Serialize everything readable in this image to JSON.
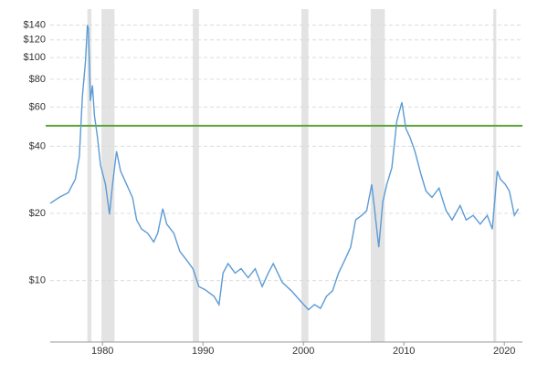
{
  "chart_data": {
    "type": "line",
    "log_scale": true,
    "grid": true,
    "xlim": [
      1974.8,
      2021.8
    ],
    "xticks": [
      1980,
      1990,
      2000,
      2010,
      2020
    ],
    "ylim": [
      5.3,
      165
    ],
    "yticks": [
      {
        "value": 10,
        "label": "$10"
      },
      {
        "value": 20,
        "label": "$20"
      },
      {
        "value": 40,
        "label": "$40"
      },
      {
        "value": 60,
        "label": "$60"
      },
      {
        "value": 80,
        "label": "$80"
      },
      {
        "value": 100,
        "label": "$100"
      },
      {
        "value": 120,
        "label": "$120"
      },
      {
        "value": 140,
        "label": "$140"
      }
    ],
    "recessions": [
      [
        1978.5,
        1978.9
      ],
      [
        1979.9,
        1981.2
      ],
      [
        1989.0,
        1989.6
      ],
      [
        1999.8,
        2000.5
      ],
      [
        2006.7,
        2008.1
      ],
      [
        2018.9,
        2019.2
      ]
    ],
    "recession_color": "#e3e3e3",
    "reference_line": 49.5,
    "reference_color": "#5ca33a",
    "x": [
      1974.8,
      1975.7,
      1976.6,
      1977.3,
      1977.7,
      1978.0,
      1978.3,
      1978.5,
      1978.6,
      1978.8,
      1979.0,
      1979.2,
      1979.5,
      1979.8,
      1980.3,
      1980.7,
      1981.0,
      1981.4,
      1981.8,
      1982.4,
      1983.0,
      1983.4,
      1983.9,
      1984.5,
      1985.1,
      1985.5,
      1986.0,
      1986.4,
      1987.1,
      1987.7,
      1988.4,
      1989.0,
      1989.6,
      1990.2,
      1991.1,
      1991.6,
      1992.0,
      1992.5,
      1993.2,
      1993.8,
      1994.5,
      1995.2,
      1995.9,
      1996.5,
      1997.0,
      1997.9,
      1998.8,
      1999.7,
      2000.5,
      2001.1,
      2001.7,
      2002.3,
      2002.9,
      2003.5,
      2004.1,
      2004.7,
      2005.2,
      2005.8,
      2006.3,
      2006.8,
      2007.1,
      2007.5,
      2007.9,
      2008.3,
      2008.8,
      2009.3,
      2009.8,
      2010.2,
      2010.6,
      2011.1,
      2011.7,
      2012.2,
      2012.8,
      2013.5,
      2014.2,
      2014.8,
      2015.6,
      2016.2,
      2016.9,
      2017.6,
      2018.3,
      2018.8,
      2019.3,
      2019.6,
      2020.1,
      2020.5,
      2021.0,
      2021.4
    ],
    "series": [
      {
        "color": "#5b9bd5",
        "values": [
          22.2,
          23.6,
          24.8,
          28.5,
          36,
          67,
          95,
          140,
          135,
          64,
          75,
          55,
          44,
          33,
          27,
          19.8,
          27,
          38,
          31,
          27,
          23.5,
          18.7,
          17,
          16.3,
          14.9,
          16.3,
          21,
          17.9,
          16.3,
          13.5,
          12.3,
          11.3,
          9.4,
          9.1,
          8.5,
          7.8,
          10.8,
          11.9,
          10.8,
          11.3,
          10.3,
          11.3,
          9.4,
          10.8,
          11.9,
          9.8,
          9.0,
          8.1,
          7.4,
          7.8,
          7.5,
          8.5,
          9.0,
          10.8,
          12.3,
          14.1,
          18.7,
          19.6,
          20.6,
          27,
          20.6,
          14.1,
          22.5,
          27,
          32,
          52,
          63,
          48,
          44,
          38,
          30,
          25.2,
          23.6,
          26,
          20.6,
          18.7,
          21.7,
          18.7,
          19.6,
          17.9,
          19.6,
          17,
          31,
          28.5,
          27,
          25.2,
          19.6,
          21
        ]
      }
    ]
  }
}
